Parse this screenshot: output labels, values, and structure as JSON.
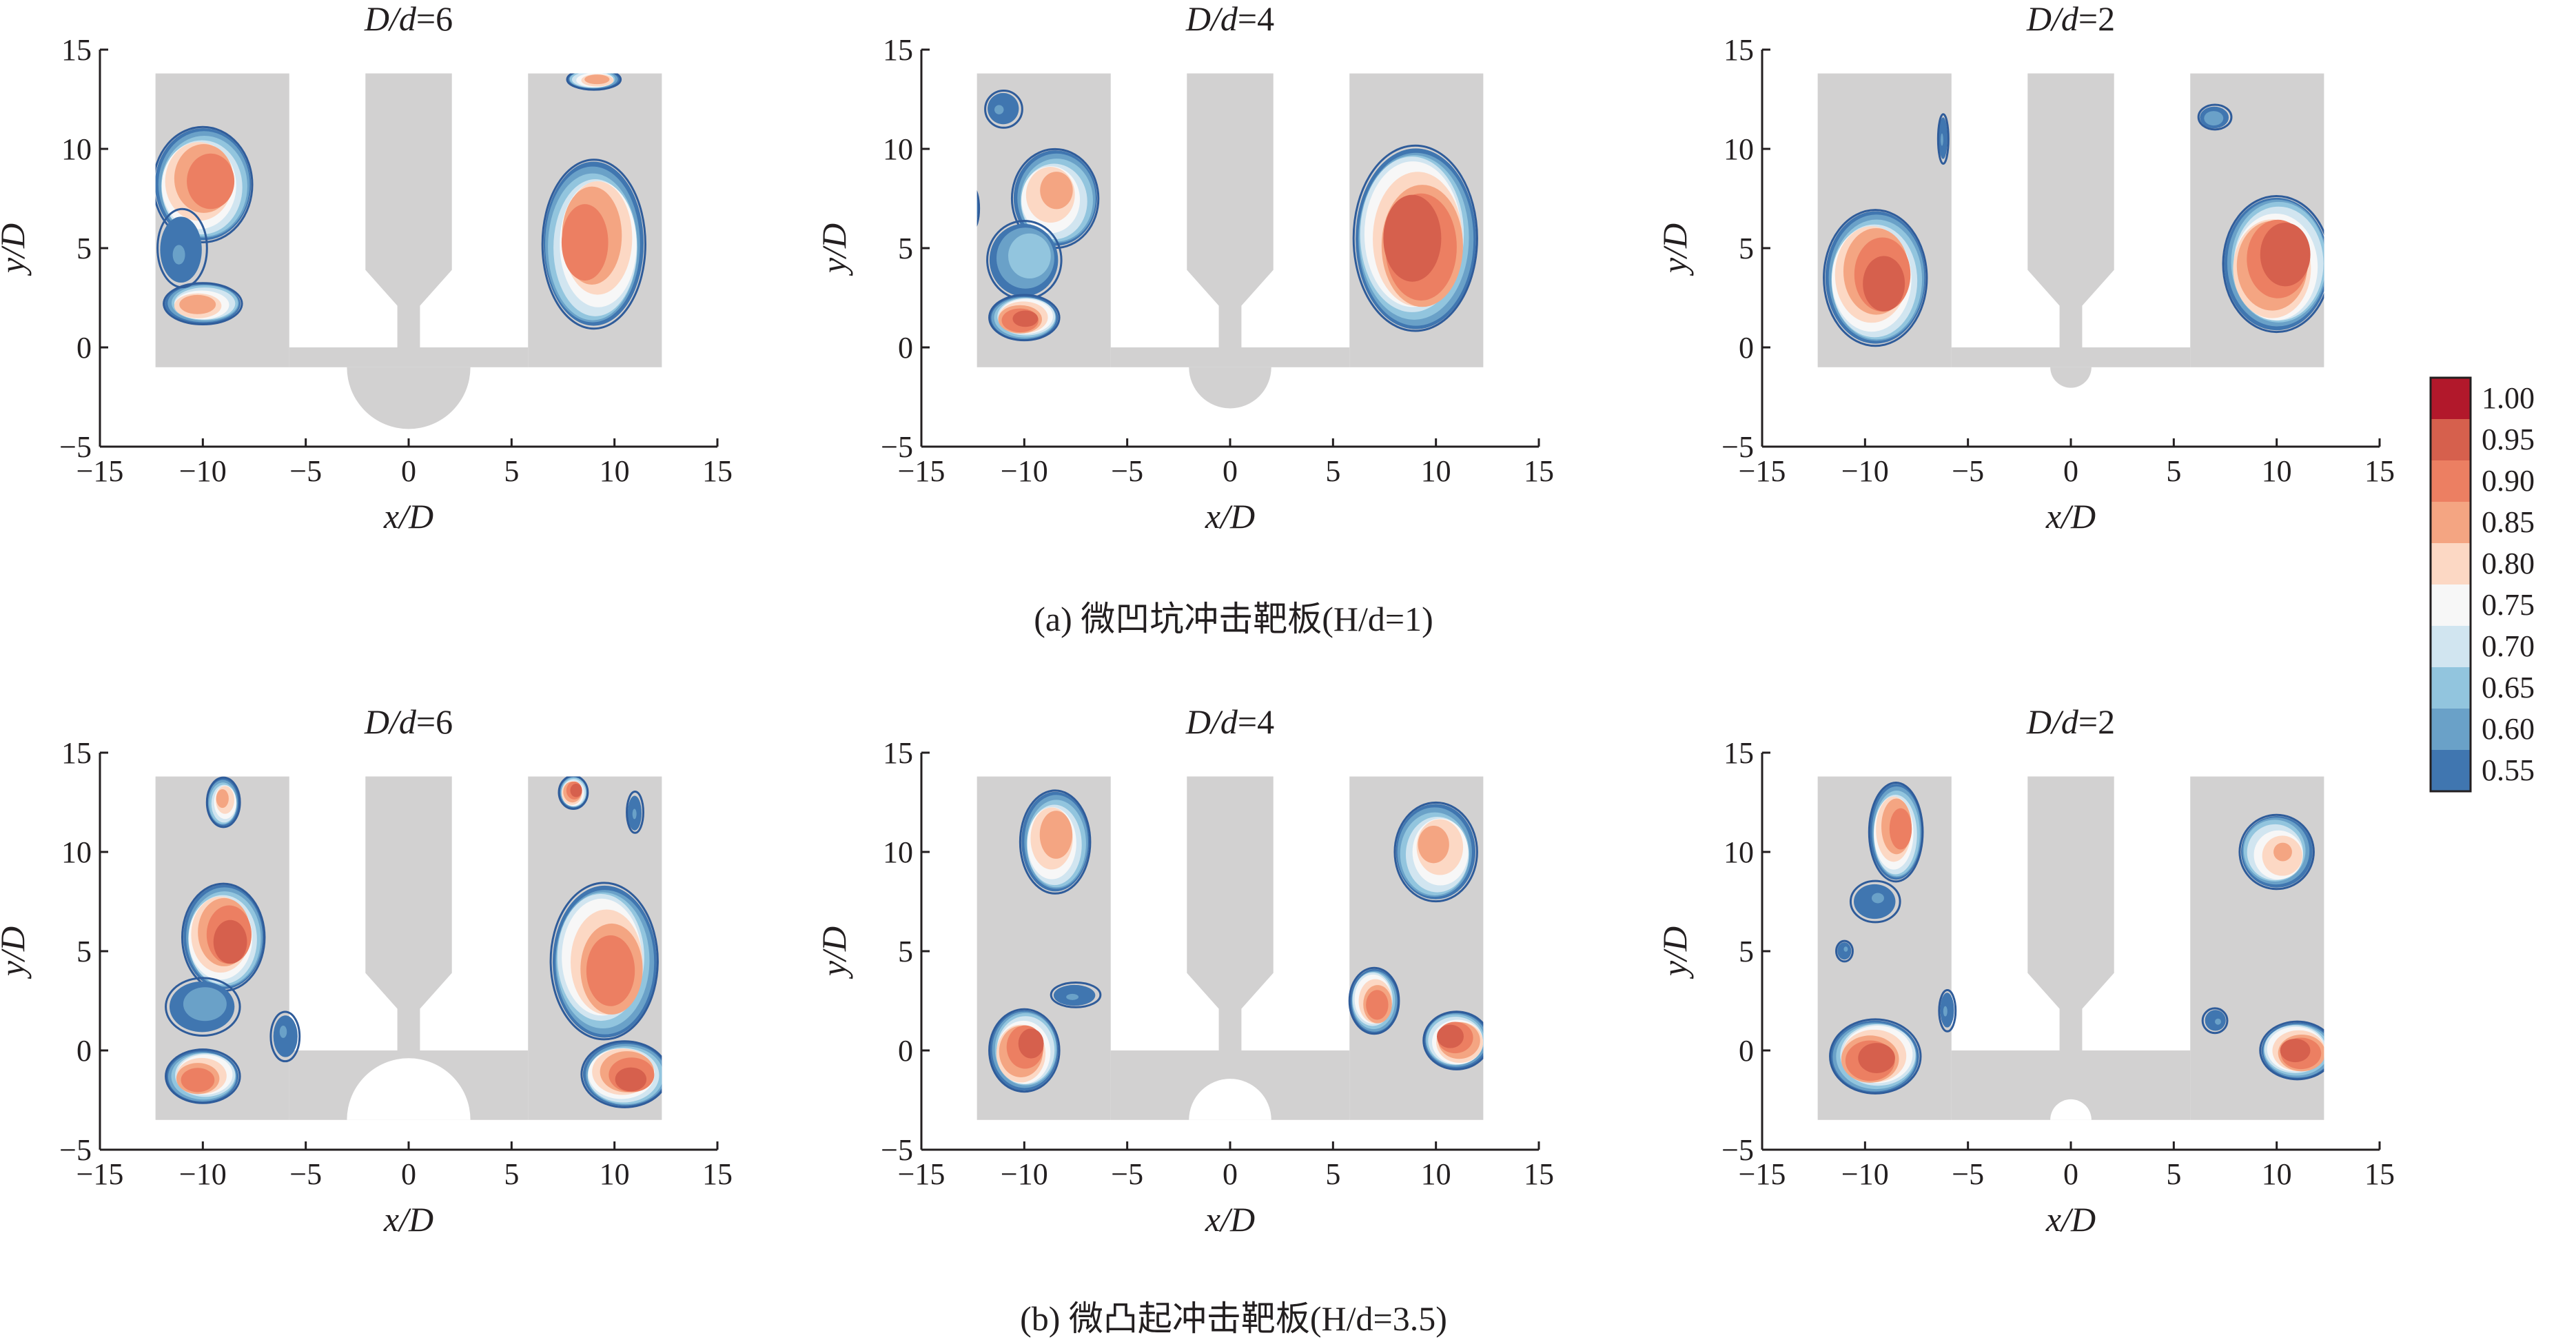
{
  "chart_data": {
    "type": "heatmap",
    "xlabel": "x/D",
    "ylabel": "y/D",
    "xlim": [
      -15,
      15
    ],
    "ylim": [
      -5,
      15
    ],
    "xticks": [
      -15,
      -10,
      -5,
      0,
      5,
      10,
      15
    ],
    "yticks": [
      -5,
      0,
      5,
      10,
      15
    ],
    "colorbar": {
      "levels": [
        "1.00",
        "0.95",
        "0.90",
        "0.85",
        "0.80",
        "0.75",
        "0.70",
        "0.65",
        "0.60",
        "0.55"
      ],
      "colors": [
        "#b2182b",
        "#d6604d",
        "#ec7f62",
        "#f4a582",
        "#fcd8c4",
        "#f7f7f7",
        "#d1e5f0",
        "#92c5de",
        "#6aa1c8",
        "#4076b0"
      ]
    },
    "rows": [
      {
        "caption": "(a) 微凹坑冲击靶板(H/d=1)",
        "plate_bottom": -1,
        "feature": "dimple",
        "panels": [
          {
            "title_prefix": "D/d",
            "title_value": "=6",
            "feature_radius": 3.0,
            "blobs": [
              {
                "x": -10,
                "y": 8.2,
                "rx": 2.4,
                "ry": 2.8,
                "peak": 0.94
              },
              {
                "x": -10,
                "y": 2.2,
                "rx": 1.9,
                "ry": 1.0,
                "peak": 0.88
              },
              {
                "x": -11,
                "y": 5.0,
                "rx": 1.2,
                "ry": 1.9,
                "peak": 0.6
              },
              {
                "x": 9,
                "y": 5.2,
                "rx": 2.5,
                "ry": 4.1,
                "peak": 0.93
              },
              {
                "x": 9,
                "y": 13.5,
                "rx": 1.3,
                "ry": 0.5,
                "peak": 0.88
              }
            ]
          },
          {
            "title_prefix": "D/d",
            "title_value": "=4",
            "feature_radius": 2.0,
            "blobs": [
              {
                "x": -8.5,
                "y": 7.5,
                "rx": 2.1,
                "ry": 2.4,
                "peak": 0.86
              },
              {
                "x": -10,
                "y": 4.4,
                "rx": 1.8,
                "ry": 1.9,
                "peak": 0.68
              },
              {
                "x": -10,
                "y": 1.5,
                "rx": 1.7,
                "ry": 1.1,
                "peak": 0.96
              },
              {
                "x": -11,
                "y": 12,
                "rx": 0.9,
                "ry": 0.9,
                "peak": 0.6
              },
              {
                "x": -12.5,
                "y": 7,
                "rx": 0.3,
                "ry": 1.0,
                "peak": 0.6
              },
              {
                "x": 9,
                "y": 5.5,
                "rx": 3.0,
                "ry": 4.5,
                "peak": 0.99
              }
            ]
          },
          {
            "title_prefix": "D/d",
            "title_value": "=2",
            "feature_radius": 1.0,
            "blobs": [
              {
                "x": -9.5,
                "y": 3.5,
                "rx": 2.5,
                "ry": 3.3,
                "peak": 0.97
              },
              {
                "x": 10,
                "y": 4.2,
                "rx": 2.6,
                "ry": 3.3,
                "peak": 0.99
              },
              {
                "x": 7,
                "y": 11.6,
                "rx": 0.8,
                "ry": 0.6,
                "peak": 0.62
              },
              {
                "x": -6.2,
                "y": 10.5,
                "rx": 0.25,
                "ry": 1.2,
                "peak": 0.6
              }
            ]
          }
        ]
      },
      {
        "caption": "(b) 微凸起冲击靶板(H/d=3.5)",
        "plate_bottom": -3.5,
        "feature": "bump",
        "panels": [
          {
            "title_prefix": "D/d",
            "title_value": "=6",
            "feature_radius": 3.0,
            "blobs": [
              {
                "x": -9,
                "y": 5.7,
                "rx": 2.0,
                "ry": 2.6,
                "peak": 0.97
              },
              {
                "x": -10,
                "y": 2.2,
                "rx": 1.8,
                "ry": 1.4,
                "peak": 0.62
              },
              {
                "x": -10,
                "y": -1.3,
                "rx": 1.8,
                "ry": 1.3,
                "peak": 0.93
              },
              {
                "x": -9,
                "y": 12.5,
                "rx": 0.8,
                "ry": 1.2,
                "peak": 0.86
              },
              {
                "x": -6,
                "y": 0.7,
                "rx": 0.7,
                "ry": 1.2,
                "peak": 0.6
              },
              {
                "x": 9.5,
                "y": 4.5,
                "rx": 2.6,
                "ry": 3.8,
                "peak": 0.93
              },
              {
                "x": 10.5,
                "y": -1.2,
                "rx": 2.1,
                "ry": 1.6,
                "peak": 0.96
              },
              {
                "x": 8,
                "y": 13,
                "rx": 0.7,
                "ry": 0.8,
                "peak": 0.97
              },
              {
                "x": 11,
                "y": 12,
                "rx": 0.4,
                "ry": 1.0,
                "peak": 0.6
              }
            ]
          },
          {
            "title_prefix": "D/d",
            "title_value": "=4",
            "feature_radius": 2.0,
            "blobs": [
              {
                "x": -8.5,
                "y": 10.5,
                "rx": 1.7,
                "ry": 2.5,
                "peak": 0.88
              },
              {
                "x": -10,
                "y": 0,
                "rx": 1.7,
                "ry": 2.0,
                "peak": 0.96
              },
              {
                "x": -7.5,
                "y": 2.8,
                "rx": 1.2,
                "ry": 0.6,
                "peak": 0.6
              },
              {
                "x": 10,
                "y": 10,
                "rx": 2.0,
                "ry": 2.4,
                "peak": 0.86
              },
              {
                "x": 11,
                "y": 0.5,
                "rx": 1.6,
                "ry": 1.4,
                "peak": 0.97
              },
              {
                "x": 7,
                "y": 2.5,
                "rx": 1.2,
                "ry": 1.6,
                "peak": 0.93
              }
            ]
          },
          {
            "title_prefix": "D/d",
            "title_value": "=2",
            "feature_radius": 1.0,
            "blobs": [
              {
                "x": -8.5,
                "y": 11,
                "rx": 1.3,
                "ry": 2.4,
                "peak": 0.92
              },
              {
                "x": -9.5,
                "y": 7.5,
                "rx": 1.2,
                "ry": 1.0,
                "peak": 0.6
              },
              {
                "x": -9.5,
                "y": -0.3,
                "rx": 2.2,
                "ry": 1.8,
                "peak": 0.97
              },
              {
                "x": -6,
                "y": 2,
                "rx": 0.4,
                "ry": 1.0,
                "peak": 0.6
              },
              {
                "x": 10,
                "y": 10,
                "rx": 1.8,
                "ry": 1.8,
                "peak": 0.85
              },
              {
                "x": 11,
                "y": 0,
                "rx": 1.8,
                "ry": 1.4,
                "peak": 0.97
              },
              {
                "x": 7,
                "y": 1.5,
                "rx": 0.6,
                "ry": 0.6,
                "peak": 0.6
              },
              {
                "x": -11,
                "y": 5,
                "rx": 0.4,
                "ry": 0.5,
                "peak": 0.6
              }
            ]
          }
        ]
      }
    ]
  }
}
